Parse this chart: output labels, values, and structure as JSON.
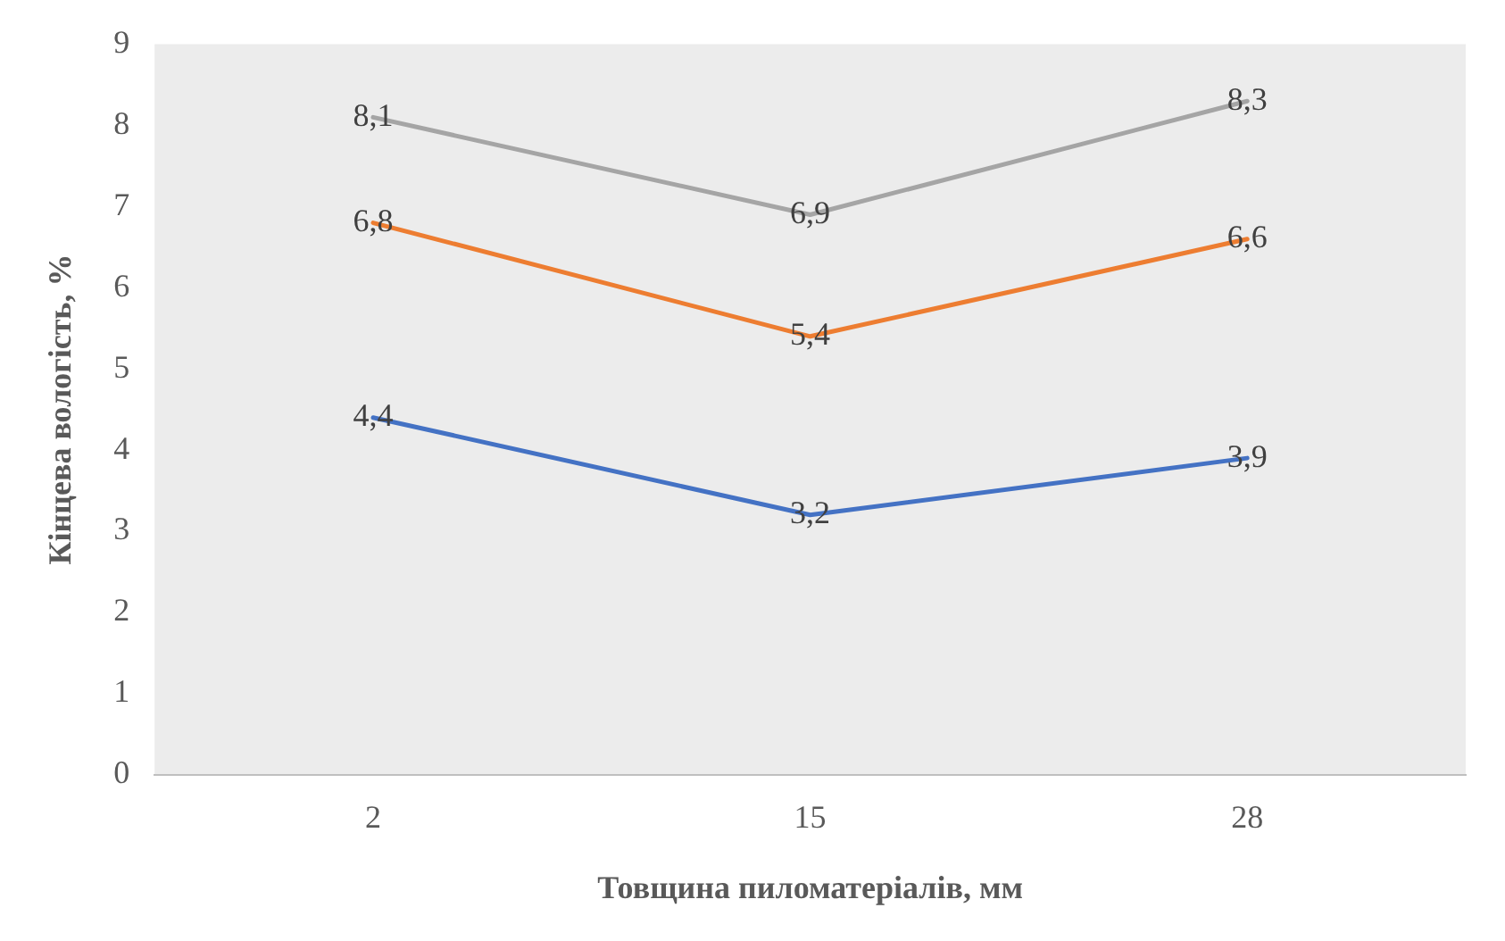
{
  "chart_data": {
    "type": "line",
    "xlabel": "Товщина пиломатеріалів, мм",
    "ylabel": "Кінцева вологість, %",
    "categories": [
      "2",
      "15",
      "28"
    ],
    "series": [
      {
        "color": "#4472c4",
        "values": [
          4.4,
          3.2,
          3.9
        ],
        "value_labels": [
          "4,4",
          "3,2",
          "3,9"
        ]
      },
      {
        "color": "#ed7d31",
        "values": [
          6.8,
          5.4,
          6.6
        ],
        "value_labels": [
          "6,8",
          "5,4",
          "6,6"
        ]
      },
      {
        "color": "#a5a5a5",
        "values": [
          8.1,
          6.9,
          8.3
        ],
        "value_labels": [
          "8,1",
          "6,9",
          "8,3"
        ]
      }
    ],
    "ylim": [
      0,
      9
    ],
    "yticks": [
      0,
      1,
      2,
      3,
      4,
      5,
      6,
      7,
      8,
      9
    ],
    "grid": false,
    "legend": false,
    "marker": "none",
    "line_style": "solid"
  }
}
